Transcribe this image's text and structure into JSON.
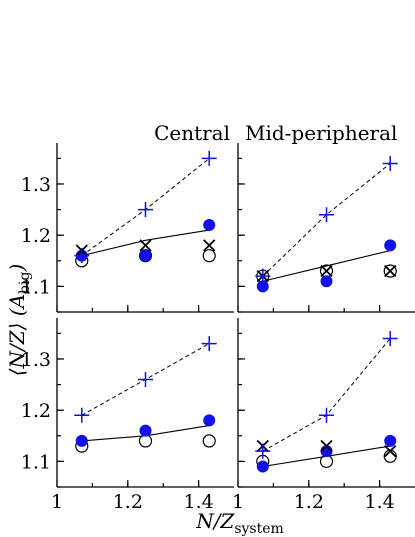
{
  "chart_data": [
    {
      "type": "scatter",
      "panel": "top-left",
      "label": "Central",
      "xlim": [
        1,
        1.5
      ],
      "ylim": [
        1.05,
        1.38
      ],
      "x_ticks": [
        1,
        1.2,
        1.4
      ],
      "y_ticks": [
        1.1,
        1.2,
        1.3
      ],
      "x": [
        1.07,
        1.25,
        1.43
      ],
      "series": [
        {
          "marker": "plus",
          "color": "#1010ee",
          "line": "dashed",
          "values": [
            1.16,
            1.25,
            1.35
          ]
        },
        {
          "marker": "filled-circle",
          "color": "#1010ee",
          "line": "solid",
          "values": [
            1.16,
            1.16,
            1.22
          ]
        },
        {
          "marker": "cross",
          "color": "#000000",
          "line": "none",
          "values": [
            1.17,
            1.18,
            1.18
          ]
        },
        {
          "marker": "open-circle",
          "color": "#000000",
          "line": "none",
          "values": [
            1.15,
            1.16,
            1.16
          ]
        }
      ],
      "fit_line": [
        1.16,
        1.19,
        1.21
      ]
    },
    {
      "type": "scatter",
      "panel": "top-right",
      "label": "Mid-peripheral",
      "xlim": [
        1,
        1.5
      ],
      "ylim": [
        1.05,
        1.38
      ],
      "x_ticks": [
        1,
        1.2,
        1.4
      ],
      "y_ticks": [
        1.1,
        1.2,
        1.3
      ],
      "x": [
        1.07,
        1.25,
        1.43
      ],
      "series": [
        {
          "marker": "plus",
          "color": "#1010ee",
          "line": "dashed",
          "values": [
            1.12,
            1.24,
            1.34
          ]
        },
        {
          "marker": "filled-circle",
          "color": "#1010ee",
          "line": "solid",
          "values": [
            1.1,
            1.11,
            1.18
          ]
        },
        {
          "marker": "cross",
          "color": "#000000",
          "line": "none",
          "values": [
            1.12,
            1.13,
            1.13
          ]
        },
        {
          "marker": "open-circle",
          "color": "#000000",
          "line": "none",
          "values": [
            1.12,
            1.13,
            1.13
          ]
        }
      ],
      "fit_line": [
        1.11,
        1.14,
        1.17
      ]
    },
    {
      "type": "scatter",
      "panel": "bottom-left",
      "label": "",
      "xlim": [
        1,
        1.5
      ],
      "ylim": [
        1.05,
        1.38
      ],
      "x_ticks": [
        1,
        1.2,
        1.4
      ],
      "y_ticks": [
        1.1,
        1.2,
        1.3
      ],
      "x": [
        1.07,
        1.25,
        1.43
      ],
      "series": [
        {
          "marker": "plus",
          "color": "#1010ee",
          "line": "dashed",
          "values": [
            1.19,
            1.26,
            1.33
          ]
        },
        {
          "marker": "filled-circle",
          "color": "#1010ee",
          "line": "solid",
          "values": [
            1.14,
            1.16,
            1.18
          ]
        },
        {
          "marker": "cross",
          "color": "#000000",
          "line": "none",
          "values": []
        },
        {
          "marker": "open-circle",
          "color": "#000000",
          "line": "none",
          "values": [
            1.13,
            1.14,
            1.14
          ]
        }
      ],
      "fit_line": [
        1.14,
        1.15,
        1.17
      ]
    },
    {
      "type": "scatter",
      "panel": "bottom-right",
      "label": "",
      "xlim": [
        1,
        1.5
      ],
      "ylim": [
        1.05,
        1.38
      ],
      "x_ticks": [
        1,
        1.2,
        1.4
      ],
      "y_ticks": [
        1.1,
        1.2,
        1.3
      ],
      "x": [
        1.07,
        1.25,
        1.43
      ],
      "series": [
        {
          "marker": "plus",
          "color": "#1010ee",
          "line": "dashed",
          "values": [
            1.12,
            1.19,
            1.34
          ]
        },
        {
          "marker": "filled-circle",
          "color": "#1010ee",
          "line": "solid",
          "values": [
            1.09,
            1.12,
            1.14
          ]
        },
        {
          "marker": "cross",
          "color": "#000000",
          "line": "none",
          "values": [
            1.13,
            1.13,
            1.12
          ]
        },
        {
          "marker": "open-circle",
          "color": "#000000",
          "line": "none",
          "values": [
            1.1,
            1.1,
            1.11
          ]
        }
      ],
      "fit_line": [
        1.09,
        1.11,
        1.13
      ]
    }
  ],
  "axes": {
    "ylabel_main": "⟨N/Z⟩ (A",
    "ylabel_sub": "big",
    "ylabel_end": ")",
    "xlabel_main": "N/Z",
    "xlabel_sub": "system"
  }
}
